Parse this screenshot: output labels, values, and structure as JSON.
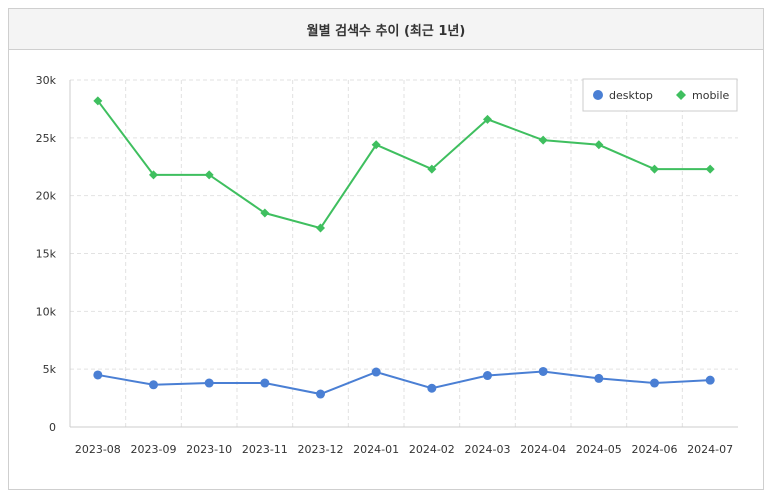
{
  "header": {
    "title": "월별 검색수 추이 (최근 1년)"
  },
  "chart_data": {
    "type": "line",
    "title": "월별 검색수 추이 (최근 1년)",
    "categories": [
      "2023-08",
      "2023-09",
      "2023-10",
      "2023-11",
      "2023-12",
      "2024-01",
      "2024-02",
      "2024-03",
      "2024-04",
      "2024-05",
      "2024-06",
      "2024-07"
    ],
    "series": [
      {
        "name": "desktop",
        "color": "#4a7fd4",
        "marker": "circle",
        "values": [
          4500,
          3650,
          3800,
          3800,
          2850,
          4750,
          3350,
          4450,
          4800,
          4200,
          3800,
          4050
        ]
      },
      {
        "name": "mobile",
        "color": "#3fbf5f",
        "marker": "diamond",
        "values": [
          28200,
          21800,
          21800,
          18500,
          17200,
          24400,
          22300,
          26600,
          24800,
          24400,
          22300,
          22300
        ]
      }
    ],
    "yticks": [
      {
        "value": 0,
        "label": "0"
      },
      {
        "value": 5000,
        "label": "5k"
      },
      {
        "value": 10000,
        "label": "10k"
      },
      {
        "value": 15000,
        "label": "15k"
      },
      {
        "value": 20000,
        "label": "20k"
      },
      {
        "value": 25000,
        "label": "25k"
      },
      {
        "value": 30000,
        "label": "30k"
      }
    ],
    "ylim": [
      0,
      30000
    ],
    "grid": true,
    "legend_position": "top-right",
    "xlabel": "",
    "ylabel": ""
  }
}
